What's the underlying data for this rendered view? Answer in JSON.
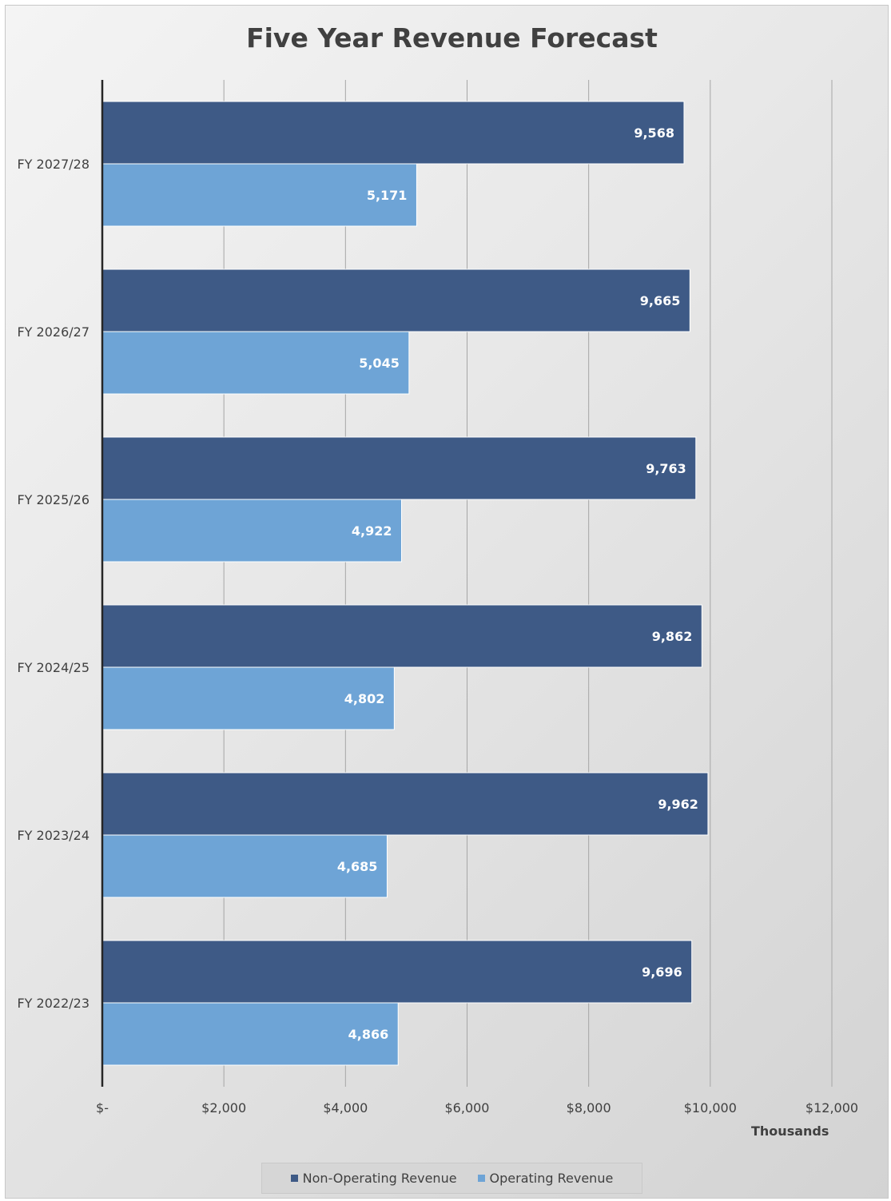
{
  "chart_data": {
    "type": "bar",
    "orientation": "horizontal",
    "title": "Five Year Revenue Forecast",
    "xlabel": "Thousands",
    "ylabel": "",
    "xlim": [
      0,
      12000
    ],
    "x_ticks": [
      0,
      2000,
      4000,
      6000,
      8000,
      10000,
      12000
    ],
    "x_tick_labels": [
      "$-",
      "$2,000",
      "$4,000",
      "$6,000",
      "$8,000",
      "$10,000",
      "$12,000"
    ],
    "categories": [
      "FY 2027/28",
      "FY 2026/27",
      "FY 2025/26",
      "FY 2024/25",
      "FY 2023/24",
      "FY 2022/23"
    ],
    "series": [
      {
        "name": "Non-Operating Revenue",
        "color": "#3e5a86",
        "values": [
          9568,
          9665,
          9763,
          9862,
          9962,
          9696
        ]
      },
      {
        "name": "Operating Revenue",
        "color": "#6ea4d6",
        "values": [
          5171,
          5045,
          4922,
          4802,
          4685,
          4866
        ]
      }
    ],
    "data_labels": true,
    "grid": true,
    "legend_position": "bottom"
  }
}
